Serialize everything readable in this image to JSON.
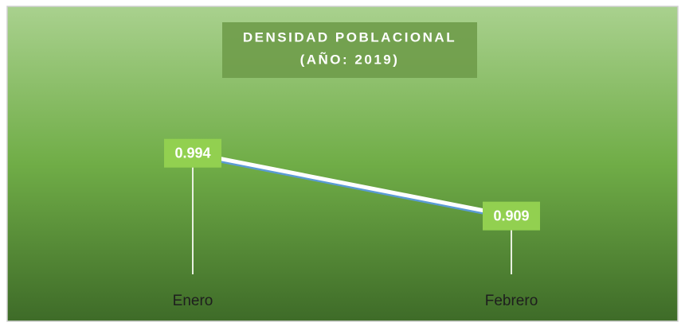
{
  "chart_data": {
    "type": "line",
    "title": [
      "DENSIDAD POBLACIONAL",
      "(AÑO: 2019)"
    ],
    "categories": [
      "Enero",
      "Febrero"
    ],
    "values": [
      0.994,
      0.909
    ],
    "color": "#ffffff",
    "ylim": [
      0.83,
      1.04
    ],
    "drop_lines": true
  }
}
